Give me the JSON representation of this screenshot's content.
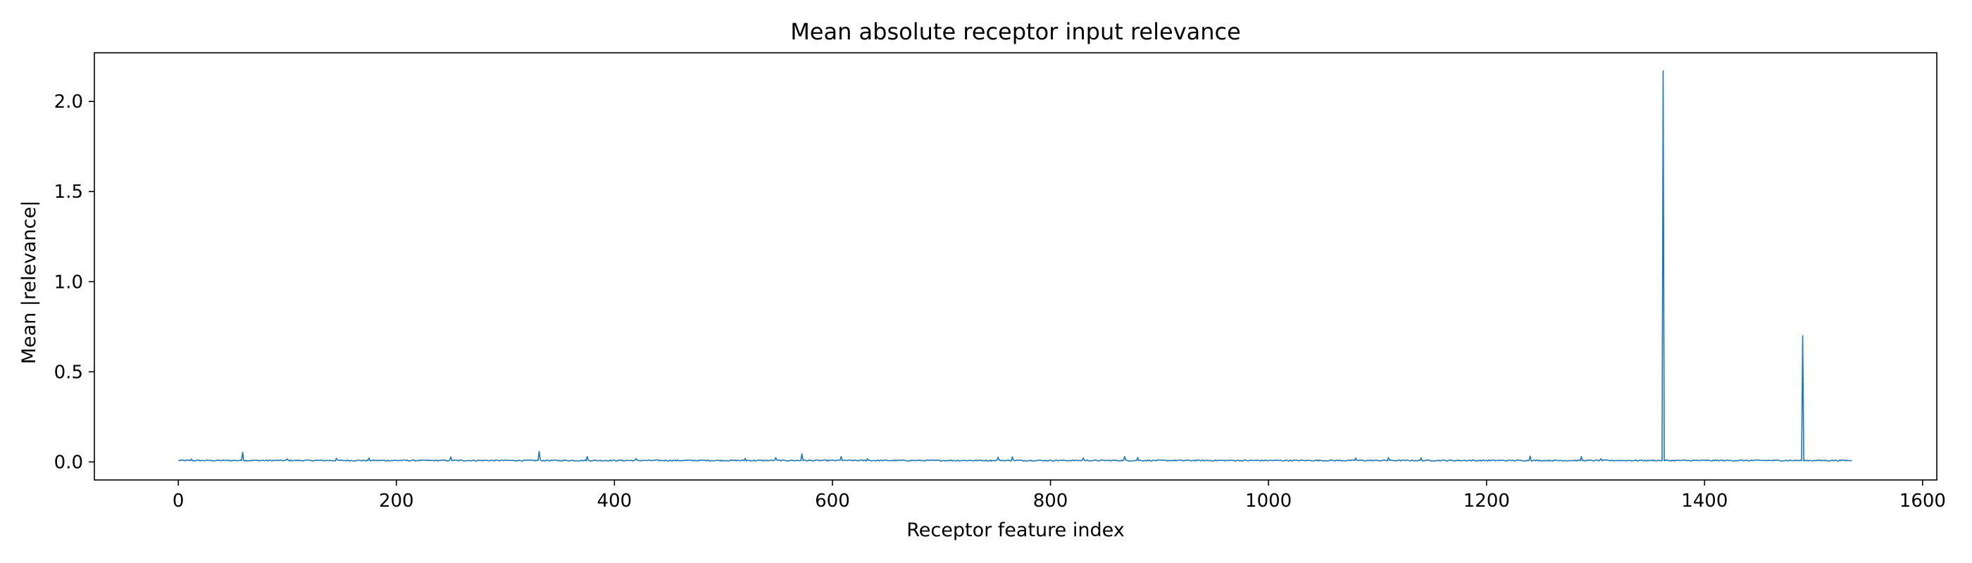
{
  "chart_data": {
    "type": "line",
    "title": "Mean absolute receptor input relevance",
    "xlabel": "Receptor feature index",
    "ylabel": "Mean |relevance|",
    "xlim": [
      -77,
      1613
    ],
    "ylim": [
      -0.1,
      2.27
    ],
    "xticks": [
      0,
      200,
      400,
      600,
      800,
      1000,
      1200,
      1400,
      1600
    ],
    "xtick_labels": [
      "0",
      "200",
      "400",
      "600",
      "800",
      "1000",
      "1200",
      "1400",
      "1600"
    ],
    "yticks": [
      0.0,
      0.5,
      1.0,
      1.5,
      2.0
    ],
    "ytick_labels": [
      "0.0",
      "0.5",
      "1.0",
      "1.5",
      "2.0"
    ],
    "grid": false,
    "series": [
      {
        "color": "#1f77b4",
        "n_points": 1536,
        "baseline": 0.008,
        "peaks": [
          {
            "x": 12,
            "y": 0.016
          },
          {
            "x": 59,
            "y": 0.054
          },
          {
            "x": 100,
            "y": 0.017
          },
          {
            "x": 145,
            "y": 0.02
          },
          {
            "x": 175,
            "y": 0.022
          },
          {
            "x": 250,
            "y": 0.028
          },
          {
            "x": 331,
            "y": 0.058
          },
          {
            "x": 375,
            "y": 0.03
          },
          {
            "x": 420,
            "y": 0.018
          },
          {
            "x": 520,
            "y": 0.02
          },
          {
            "x": 548,
            "y": 0.024
          },
          {
            "x": 572,
            "y": 0.045
          },
          {
            "x": 608,
            "y": 0.03
          },
          {
            "x": 632,
            "y": 0.018
          },
          {
            "x": 752,
            "y": 0.026
          },
          {
            "x": 765,
            "y": 0.028
          },
          {
            "x": 830,
            "y": 0.022
          },
          {
            "x": 868,
            "y": 0.03
          },
          {
            "x": 880,
            "y": 0.024
          },
          {
            "x": 1080,
            "y": 0.022
          },
          {
            "x": 1110,
            "y": 0.024
          },
          {
            "x": 1140,
            "y": 0.022
          },
          {
            "x": 1240,
            "y": 0.032
          },
          {
            "x": 1287,
            "y": 0.03
          },
          {
            "x": 1305,
            "y": 0.018
          },
          {
            "x": 1362,
            "y": 2.17
          },
          {
            "x": 1490,
            "y": 0.7
          }
        ]
      }
    ]
  }
}
